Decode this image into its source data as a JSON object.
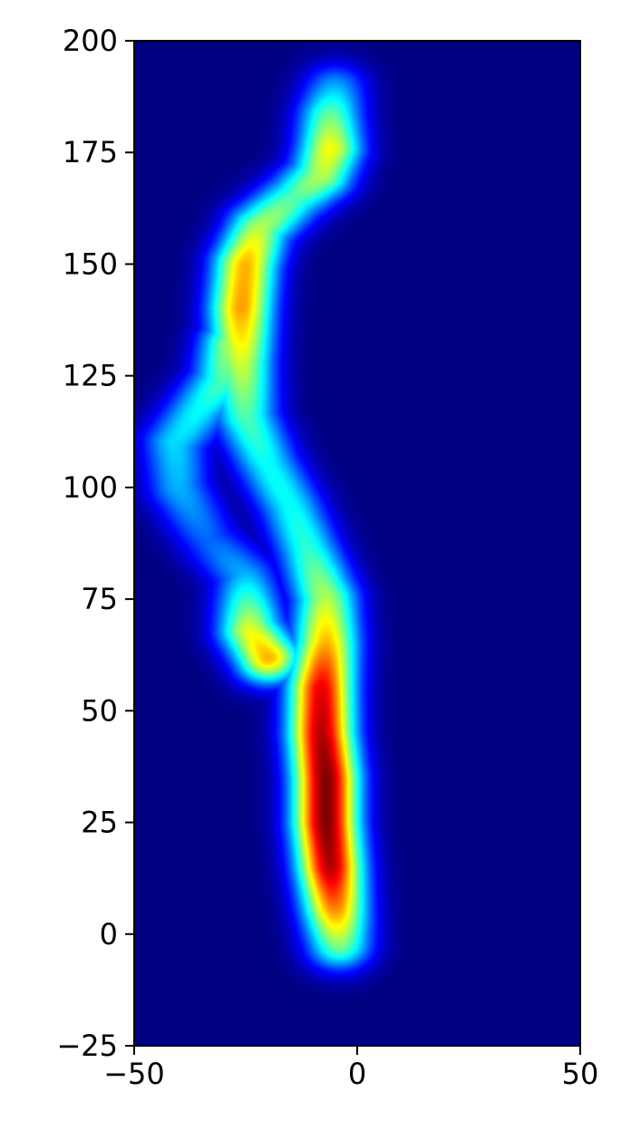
{
  "chart_data": {
    "type": "heatmap",
    "title": "",
    "xlabel": "",
    "ylabel": "",
    "xlim": [
      -50,
      50
    ],
    "ylim": [
      -25,
      200
    ],
    "x_ticks": [
      "−50",
      "0",
      "50"
    ],
    "y_ticks": [
      "−25",
      "0",
      "25",
      "50",
      "75",
      "100",
      "125",
      "150",
      "175",
      "200"
    ],
    "colormap": "jet",
    "background_color": "#00007f",
    "grid": false,
    "legend": "none",
    "density_ridges": [
      {
        "points": [
          [
            -4,
            -2
          ],
          [
            -5,
            6
          ],
          [
            -6,
            15
          ],
          [
            -7,
            25
          ],
          [
            -7,
            35
          ],
          [
            -8,
            45
          ],
          [
            -8,
            55
          ],
          [
            -7,
            65
          ],
          [
            -7,
            75
          ],
          [
            -11,
            86
          ],
          [
            -15,
            96
          ],
          [
            -20,
            105
          ],
          [
            -25,
            116
          ],
          [
            -26,
            128
          ],
          [
            -26,
            140
          ],
          [
            -25,
            150
          ],
          [
            -22,
            158
          ],
          [
            -14,
            165
          ],
          [
            -8,
            170
          ],
          [
            -6,
            176
          ],
          [
            -6,
            183
          ],
          [
            -5,
            189
          ]
        ],
        "intensity": [
          0.5,
          0.75,
          0.95,
          1.0,
          1.0,
          0.95,
          0.9,
          0.7,
          0.55,
          0.42,
          0.38,
          0.38,
          0.45,
          0.58,
          0.72,
          0.7,
          0.55,
          0.45,
          0.55,
          0.62,
          0.48,
          0.3
        ]
      },
      {
        "points": [
          [
            -20,
            62
          ],
          [
            -24,
            68
          ],
          [
            -25,
            80
          ],
          [
            -33,
            88
          ],
          [
            -40,
            100
          ],
          [
            -41,
            110
          ],
          [
            -35,
            118
          ],
          [
            -30,
            124
          ],
          [
            -28,
            132
          ]
        ],
        "intensity": [
          0.7,
          0.6,
          0.3,
          0.22,
          0.3,
          0.34,
          0.38,
          0.45,
          0.55
        ]
      }
    ]
  }
}
